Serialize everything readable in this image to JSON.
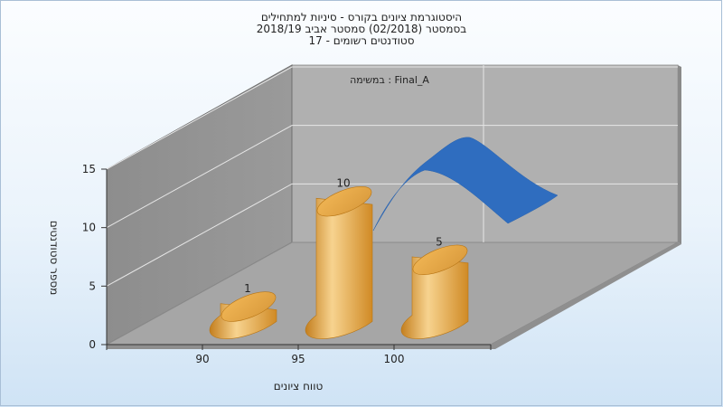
{
  "title": {
    "line1": "היסטוגרמת ציונים בקורס - סיניות למתחילים",
    "line2": "בסמסטר  (02/2018)  סמסטר אביב 2018/19",
    "line3": "סטודנטים רשומים - 17"
  },
  "chart_data": {
    "type": "bar",
    "categories": [
      "90",
      "95",
      "100"
    ],
    "values": [
      1,
      10,
      5
    ],
    "data_labels": [
      "1",
      "10",
      "5"
    ],
    "xlabel": "טווח ציונים",
    "ylabel": "מספר סטודנטים",
    "yticks": [
      "0",
      "5",
      "10",
      "15"
    ],
    "ylim": [
      0,
      15
    ],
    "legend": "במשימה : Final_A",
    "grid": true,
    "series_colors": {
      "bars": "#e5a43e",
      "curve": "#2f6dbf"
    }
  }
}
